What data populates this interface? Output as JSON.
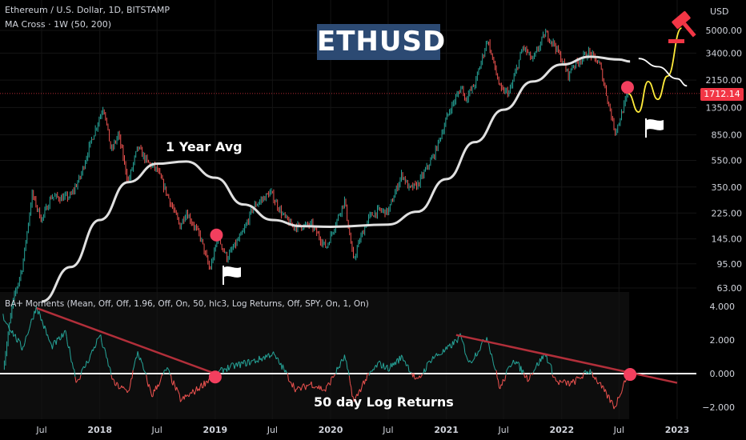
{
  "header": {
    "symbol_line": "Ethereum / U.S. Dollar, 1D, BITSTAMP",
    "ma_line": "MA Cross · 1W (50, 200)"
  },
  "badge": {
    "text": "ETHUSD"
  },
  "annotations": {
    "ma_label": "1 Year Avg",
    "returns_label": "50 day Log Returns"
  },
  "indicator": {
    "label": "BAⵜ Moments (Mean, Off, Off, 1.96, Off, On, 50, hlc3, Log Returns, Off, SPY, On, 1, On)"
  },
  "colors": {
    "up": "#26a69a",
    "down": "#ef5350",
    "ma": "#e0e0e0",
    "trend": "#b22f3a",
    "marker": "#f23f5e",
    "forecast": "#ffeb3b",
    "badge": "#2c4a73"
  },
  "chart_data": {
    "type": "line",
    "price_axis": {
      "unit_label": "USD",
      "scale": "log",
      "ticks": [
        "5000.00",
        "3400.00",
        "2150.00",
        "1350.00",
        "850.00",
        "550.00",
        "350.00",
        "225.00",
        "145.00",
        "95.00",
        "63.00"
      ],
      "current_price": "1712.14"
    },
    "indicator_axis": {
      "ticks": [
        "4.000",
        "2.000",
        "0.000",
        "−2.000"
      ],
      "range": [
        -2.7,
        4.5
      ]
    },
    "x_axis": {
      "ticks": [
        "Jul",
        "2018",
        "Jul",
        "2019",
        "Jul",
        "2020",
        "Jul",
        "2021",
        "Jul",
        "2022",
        "Jul",
        "2023"
      ],
      "tick_dates": [
        "2017-07-01",
        "2018-01-01",
        "2018-07-01",
        "2019-01-01",
        "2019-07-01",
        "2020-01-01",
        "2020-07-01",
        "2021-01-01",
        "2021-07-01",
        "2022-01-01",
        "2022-07-01",
        "2023-01-01"
      ]
    },
    "price_series": [
      [
        "2017-03-01",
        16
      ],
      [
        "2017-04-01",
        50
      ],
      [
        "2017-05-01",
        90
      ],
      [
        "2017-06-01",
        310
      ],
      [
        "2017-07-01",
        200
      ],
      [
        "2017-08-01",
        300
      ],
      [
        "2017-09-01",
        290
      ],
      [
        "2017-10-01",
        300
      ],
      [
        "2017-11-01",
        420
      ],
      [
        "2017-12-01",
        720
      ],
      [
        "2018-01-13",
        1390
      ],
      [
        "2018-02-06",
        640
      ],
      [
        "2018-03-01",
        860
      ],
      [
        "2018-04-01",
        380
      ],
      [
        "2018-05-01",
        690
      ],
      [
        "2018-06-01",
        530
      ],
      [
        "2018-07-01",
        470
      ],
      [
        "2018-08-15",
        260
      ],
      [
        "2018-09-12",
        180
      ],
      [
        "2018-10-01",
        230
      ],
      [
        "2018-11-15",
        150
      ],
      [
        "2018-12-15",
        85
      ],
      [
        "2019-01-10",
        150
      ],
      [
        "2019-02-07",
        105
      ],
      [
        "2019-04-01",
        165
      ],
      [
        "2019-05-01",
        250
      ],
      [
        "2019-06-25",
        320
      ],
      [
        "2019-08-01",
        220
      ],
      [
        "2019-09-01",
        180
      ],
      [
        "2019-10-01",
        180
      ],
      [
        "2019-11-01",
        185
      ],
      [
        "2019-12-18",
        125
      ],
      [
        "2020-02-14",
        280
      ],
      [
        "2020-03-13",
        100
      ],
      [
        "2020-04-01",
        140
      ],
      [
        "2020-05-01",
        210
      ],
      [
        "2020-06-01",
        235
      ],
      [
        "2020-07-01",
        230
      ],
      [
        "2020-08-14",
        440
      ],
      [
        "2020-09-05",
        340
      ],
      [
        "2020-10-01",
        360
      ],
      [
        "2020-11-24",
        610
      ],
      [
        "2021-01-10",
        1270
      ],
      [
        "2021-02-19",
        1950
      ],
      [
        "2021-03-01",
        1550
      ],
      [
        "2021-04-01",
        2000
      ],
      [
        "2021-05-11",
        4300
      ],
      [
        "2021-06-22",
        1800
      ],
      [
        "2021-07-20",
        1750
      ],
      [
        "2021-09-01",
        3800
      ],
      [
        "2021-10-01",
        3000
      ],
      [
        "2021-11-10",
        4800
      ],
      [
        "2021-12-10",
        3900
      ],
      [
        "2022-01-24",
        2300
      ],
      [
        "2022-02-01",
        2700
      ],
      [
        "2022-03-28",
        3450
      ],
      [
        "2022-05-01",
        2800
      ],
      [
        "2022-06-18",
        900
      ],
      [
        "2022-07-01",
        1050
      ],
      [
        "2022-07-15",
        1350
      ],
      [
        "2022-07-30",
        1712
      ]
    ],
    "ma_series": [
      [
        "2017-07-01",
        50
      ],
      [
        "2017-10-01",
        90
      ],
      [
        "2018-01-01",
        200
      ],
      [
        "2018-04-01",
        380
      ],
      [
        "2018-07-01",
        520
      ],
      [
        "2018-10-01",
        540
      ],
      [
        "2019-01-01",
        410
      ],
      [
        "2019-04-01",
        260
      ],
      [
        "2019-07-01",
        200
      ],
      [
        "2019-10-01",
        180
      ],
      [
        "2020-01-01",
        178
      ],
      [
        "2020-07-01",
        185
      ],
      [
        "2020-10-01",
        230
      ],
      [
        "2021-01-01",
        400
      ],
      [
        "2021-04-01",
        750
      ],
      [
        "2021-07-01",
        1300
      ],
      [
        "2021-10-01",
        2100
      ],
      [
        "2022-01-01",
        2800
      ],
      [
        "2022-04-01",
        3200
      ],
      [
        "2022-07-01",
        3050
      ],
      [
        "2022-08-05",
        2950
      ]
    ],
    "returns_series": [
      [
        "2017-03-01",
        3.4
      ],
      [
        "2017-05-01",
        1.5
      ],
      [
        "2017-06-15",
        4.0
      ],
      [
        "2017-08-01",
        1.6
      ],
      [
        "2017-09-15",
        2.4
      ],
      [
        "2017-10-20",
        -0.5
      ],
      [
        "2017-12-01",
        1.0
      ],
      [
        "2018-01-01",
        2.3
      ],
      [
        "2018-02-15",
        -0.6
      ],
      [
        "2018-04-01",
        -1.1
      ],
      [
        "2018-05-01",
        1.3
      ],
      [
        "2018-06-15",
        -1.3
      ],
      [
        "2018-08-01",
        0.3
      ],
      [
        "2018-09-15",
        -1.6
      ],
      [
        "2018-11-01",
        -1.0
      ],
      [
        "2018-12-15",
        -0.3
      ],
      [
        "2019-02-01",
        0.3
      ],
      [
        "2019-04-01",
        0.6
      ],
      [
        "2019-05-15",
        0.8
      ],
      [
        "2019-07-01",
        1.2
      ],
      [
        "2019-08-01",
        0.4
      ],
      [
        "2019-09-15",
        -1.0
      ],
      [
        "2019-11-01",
        -0.6
      ],
      [
        "2019-12-15",
        -1.0
      ],
      [
        "2020-02-15",
        1.0
      ],
      [
        "2020-03-15",
        -1.7
      ],
      [
        "2020-04-15",
        -0.5
      ],
      [
        "2020-06-01",
        0.6
      ],
      [
        "2020-07-01",
        0.3
      ],
      [
        "2020-08-15",
        1.0
      ],
      [
        "2020-10-01",
        -0.5
      ],
      [
        "2020-11-15",
        0.9
      ],
      [
        "2021-01-01",
        1.4
      ],
      [
        "2021-02-15",
        2.2
      ],
      [
        "2021-03-15",
        0.6
      ],
      [
        "2021-05-10",
        2.2
      ],
      [
        "2021-06-20",
        -0.9
      ],
      [
        "2021-08-01",
        0.9
      ],
      [
        "2021-09-15",
        -0.3
      ],
      [
        "2021-11-10",
        1.2
      ],
      [
        "2021-12-15",
        -0.5
      ],
      [
        "2022-02-01",
        -0.6
      ],
      [
        "2022-04-01",
        0.2
      ],
      [
        "2022-06-18",
        -2.0
      ],
      [
        "2022-07-30",
        0.1
      ]
    ],
    "trendlines": [
      {
        "panel": "indicator",
        "from": [
          "2017-06-15",
          3.9
        ],
        "to": [
          "2019-01-01",
          0.0
        ]
      },
      {
        "panel": "indicator",
        "from": [
          "2021-02-01",
          2.3
        ],
        "to": [
          "2023-01-01",
          -0.55
        ]
      }
    ],
    "markers": [
      {
        "panel": "price",
        "date": "2019-01-05",
        "value": 155
      },
      {
        "panel": "price",
        "date": "2022-07-28",
        "value": 1900
      },
      {
        "panel": "indicator",
        "date": "2019-01-01",
        "value": -0.2
      },
      {
        "panel": "indicator",
        "date": "2022-08-05",
        "value": -0.05
      }
    ],
    "forecast_path": [
      [
        "2022-07-30",
        1712
      ],
      [
        "2022-09-01",
        1250
      ],
      [
        "2022-10-01",
        2100
      ],
      [
        "2022-11-01",
        1550
      ],
      [
        "2022-12-01",
        2300
      ],
      [
        "2023-01-15",
        5200
      ]
    ],
    "resistance_arc": [
      [
        "2022-09-01",
        3100
      ],
      [
        "2022-11-01",
        2700
      ],
      [
        "2023-01-01",
        2200
      ],
      [
        "2023-02-01",
        1950
      ]
    ]
  }
}
